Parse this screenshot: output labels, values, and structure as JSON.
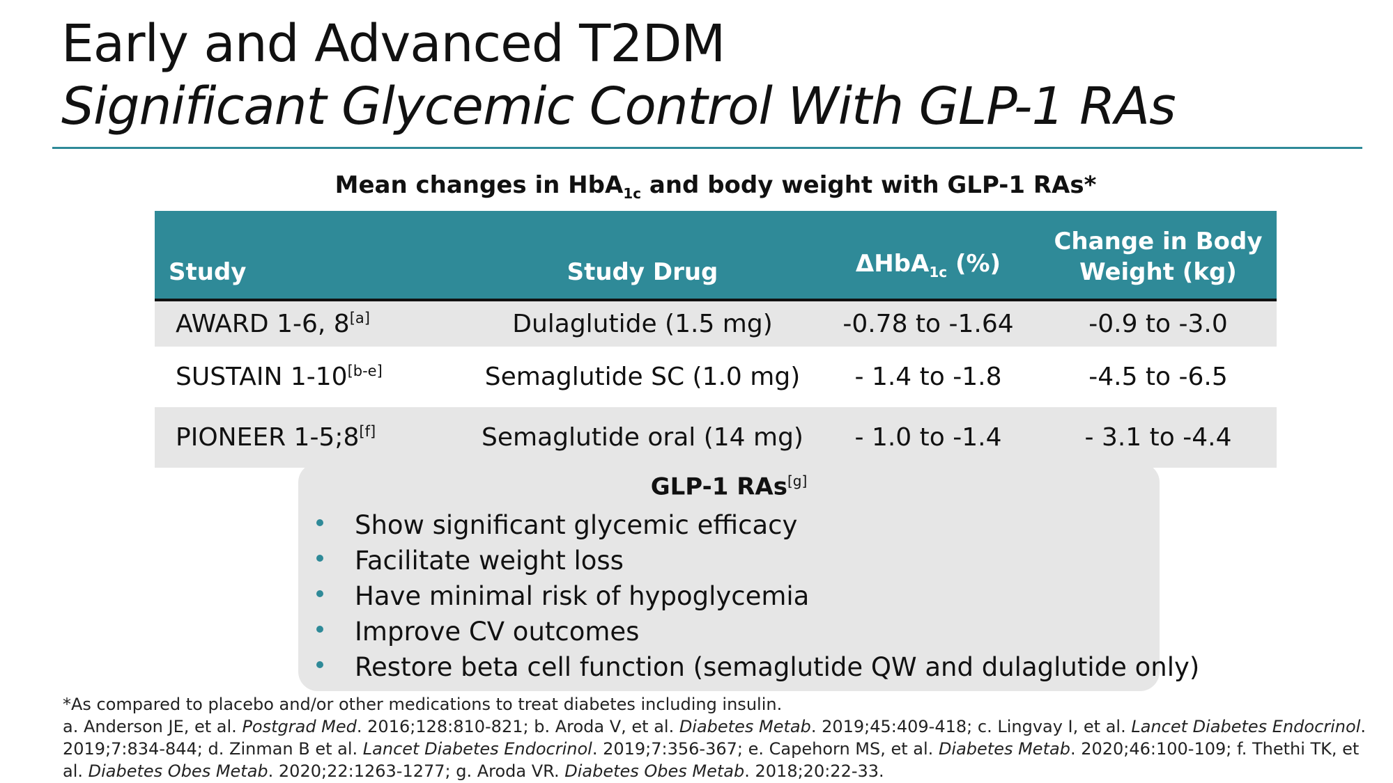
{
  "slide": {
    "title_line1": "Early and Advanced T2DM",
    "title_line2": "Significant Glycemic Control With GLP-1 RAs"
  },
  "table": {
    "caption_pre": "Mean changes in HbA",
    "caption_sub": "1c",
    "caption_post": " and body weight with GLP-1 RAs*",
    "headers": {
      "study": "Study",
      "drug": "Study Drug",
      "hba1c_pre": "ΔHbA",
      "hba1c_sub": "1c",
      "hba1c_post": " (%)",
      "weight_line1": "Change in Body",
      "weight_line2": "Weight (kg)"
    },
    "rows": [
      {
        "study": "AWARD 1-6, 8",
        "ref": "[a]",
        "drug": "Dulaglutide (1.5 mg)",
        "hba1c": "-0.78 to -1.64",
        "weight": "-0.9 to -3.0"
      },
      {
        "study": "SUSTAIN 1-10",
        "ref": "[b-e]",
        "drug": "Semaglutide SC (1.0 mg)",
        "hba1c": "- 1.4 to -1.8",
        "weight": "-4.5 to -6.5"
      },
      {
        "study": "PIONEER 1-5;8",
        "ref": "[f]",
        "drug": "Semaglutide oral (14 mg)",
        "hba1c": "- 1.0 to -1.4",
        "weight": "- 3.1 to -4.4"
      }
    ]
  },
  "glp_box": {
    "title": "GLP-1 RAs",
    "title_ref": "[g]",
    "bullets": [
      "Show significant glycemic efficacy",
      "Facilitate weight loss",
      "Have minimal risk of hypoglycemia",
      "Improve CV outcomes",
      "Restore beta cell function (semaglutide QW and dulaglutide only)"
    ]
  },
  "footnote": "*As compared to placebo and/or other medications to treat diabetes including insulin.",
  "references": [
    {
      "authors": "a. Anderson JE, et al. ",
      "journal": "Postgrad Med",
      "details": ". 2016;128:810-821; "
    },
    {
      "authors": "b. Aroda V, et al. ",
      "journal": "Diabetes Metab",
      "details": ". 2019;45:409-418; "
    },
    {
      "authors": "c. Lingvay I, et al. ",
      "journal": "Lancet Diabetes Endocrinol",
      "details": ". 2019;7:834-844; "
    },
    {
      "authors": "d. Zinman B et al. ",
      "journal": "Lancet Diabetes Endocrinol",
      "details": ". 2019;7:356-367; "
    },
    {
      "authors": "e. Capehorn MS, et al. ",
      "journal": "Diabetes Metab",
      "details": ". 2020;46:100-109; "
    },
    {
      "authors": "f. Thethi TK, et al. ",
      "journal": "Diabetes Obes Metab",
      "details": ". 2020;22:1263-1277; "
    },
    {
      "authors": "g. Aroda VR. ",
      "journal": "Diabetes Obes Metab",
      "details": ". 2018;20:22-33."
    }
  ],
  "colors": {
    "accent": "#2f8a98",
    "row_shade": "#e6e6e6",
    "box_fill": "#e6e6e6"
  }
}
